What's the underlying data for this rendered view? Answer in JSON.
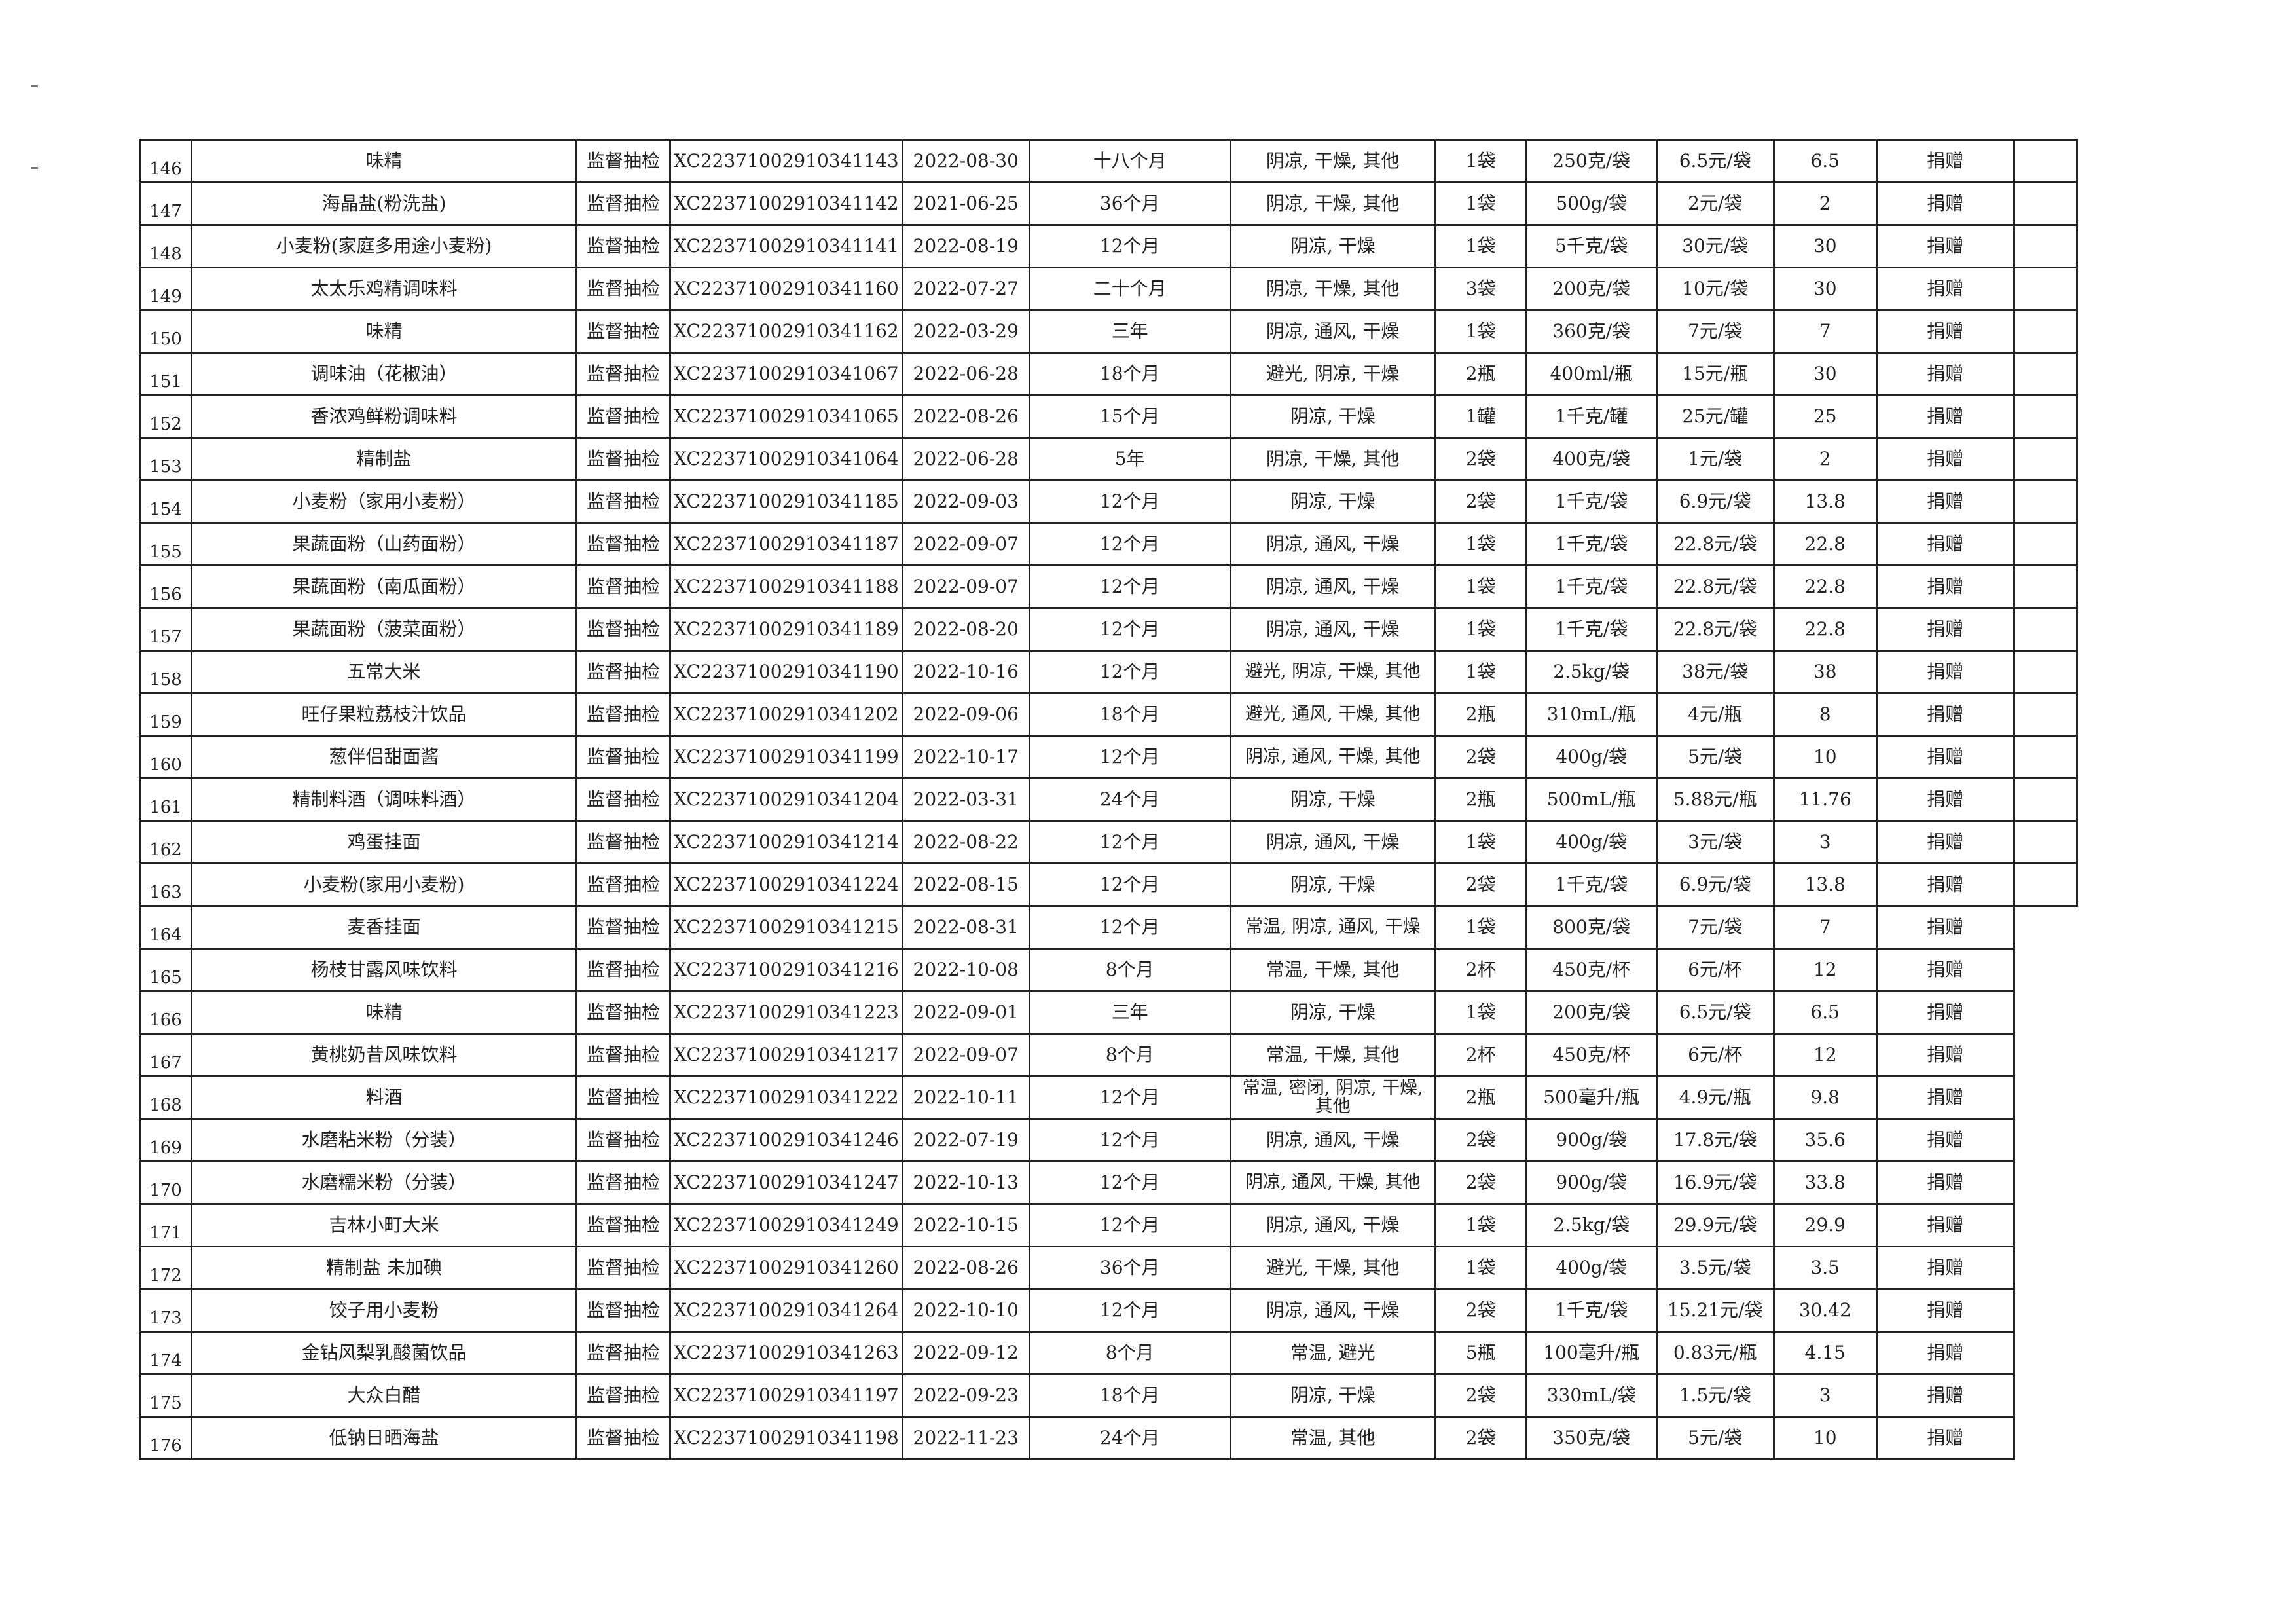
{
  "rows": [
    {
      "no": "146",
      "name": "味精",
      "type": "监督抽检",
      "code": "XC22371002910341143",
      "date": "2022-08-30",
      "shelf": "十八个月",
      "storage": "阴凉, 干燥, 其他",
      "qty": "1袋",
      "spec": "250克/袋",
      "price": "6.5元/袋",
      "amount": "6.5",
      "method": "捐赠"
    },
    {
      "no": "147",
      "name": "海晶盐(粉洗盐)",
      "type": "监督抽检",
      "code": "XC22371002910341142",
      "date": "2021-06-25",
      "shelf": "36个月",
      "storage": "阴凉, 干燥, 其他",
      "qty": "1袋",
      "spec": "500g/袋",
      "price": "2元/袋",
      "amount": "2",
      "method": "捐赠"
    },
    {
      "no": "148",
      "name": "小麦粉(家庭多用途小麦粉)",
      "type": "监督抽检",
      "code": "XC22371002910341141",
      "date": "2022-08-19",
      "shelf": "12个月",
      "storage": "阴凉, 干燥",
      "qty": "1袋",
      "spec": "5千克/袋",
      "price": "30元/袋",
      "amount": "30",
      "method": "捐赠"
    },
    {
      "no": "149",
      "name": "太太乐鸡精调味料",
      "type": "监督抽检",
      "code": "XC22371002910341160",
      "date": "2022-07-27",
      "shelf": "二十个月",
      "storage": "阴凉, 干燥, 其他",
      "qty": "3袋",
      "spec": "200克/袋",
      "price": "10元/袋",
      "amount": "30",
      "method": "捐赠"
    },
    {
      "no": "150",
      "name": "味精",
      "type": "监督抽检",
      "code": "XC22371002910341162",
      "date": "2022-03-29",
      "shelf": "三年",
      "storage": "阴凉, 通风, 干燥",
      "qty": "1袋",
      "spec": "360克/袋",
      "price": "7元/袋",
      "amount": "7",
      "method": "捐赠"
    },
    {
      "no": "151",
      "name": "调味油（花椒油）",
      "type": "监督抽检",
      "code": "XC22371002910341067",
      "date": "2022-06-28",
      "shelf": "18个月",
      "storage": "避光, 阴凉, 干燥",
      "qty": "2瓶",
      "spec": "400ml/瓶",
      "price": "15元/瓶",
      "amount": "30",
      "method": "捐赠"
    },
    {
      "no": "152",
      "name": "香浓鸡鲜粉调味料",
      "type": "监督抽检",
      "code": "XC22371002910341065",
      "date": "2022-08-26",
      "shelf": "15个月",
      "storage": "阴凉, 干燥",
      "qty": "1罐",
      "spec": "1千克/罐",
      "price": "25元/罐",
      "amount": "25",
      "method": "捐赠"
    },
    {
      "no": "153",
      "name": "精制盐",
      "type": "监督抽检",
      "code": "XC22371002910341064",
      "date": "2022-06-28",
      "shelf": "5年",
      "storage": "阴凉, 干燥, 其他",
      "qty": "2袋",
      "spec": "400克/袋",
      "price": "1元/袋",
      "amount": "2",
      "method": "捐赠"
    },
    {
      "no": "154",
      "name": "小麦粉（家用小麦粉）",
      "type": "监督抽检",
      "code": "XC22371002910341185",
      "date": "2022-09-03",
      "shelf": "12个月",
      "storage": "阴凉, 干燥",
      "qty": "2袋",
      "spec": "1千克/袋",
      "price": "6.9元/袋",
      "amount": "13.8",
      "method": "捐赠"
    },
    {
      "no": "155",
      "name": "果蔬面粉（山药面粉）",
      "type": "监督抽检",
      "code": "XC22371002910341187",
      "date": "2022-09-07",
      "shelf": "12个月",
      "storage": "阴凉, 通风, 干燥",
      "qty": "1袋",
      "spec": "1千克/袋",
      "price": "22.8元/袋",
      "amount": "22.8",
      "method": "捐赠"
    },
    {
      "no": "156",
      "name": "果蔬面粉（南瓜面粉）",
      "type": "监督抽检",
      "code": "XC22371002910341188",
      "date": "2022-09-07",
      "shelf": "12个月",
      "storage": "阴凉, 通风, 干燥",
      "qty": "1袋",
      "spec": "1千克/袋",
      "price": "22.8元/袋",
      "amount": "22.8",
      "method": "捐赠"
    },
    {
      "no": "157",
      "name": "果蔬面粉（菠菜面粉）",
      "type": "监督抽检",
      "code": "XC22371002910341189",
      "date": "2022-08-20",
      "shelf": "12个月",
      "storage": "阴凉, 通风, 干燥",
      "qty": "1袋",
      "spec": "1千克/袋",
      "price": "22.8元/袋",
      "amount": "22.8",
      "method": "捐赠"
    },
    {
      "no": "158",
      "name": "五常大米",
      "type": "监督抽检",
      "code": "XC22371002910341190",
      "date": "2022-10-16",
      "shelf": "12个月",
      "storage": "避光, 阴凉, 干燥, 其他",
      "qty": "1袋",
      "spec": "2.5kg/袋",
      "price": "38元/袋",
      "amount": "38",
      "method": "捐赠"
    },
    {
      "no": "159",
      "name": "旺仔果粒荔枝汁饮品",
      "type": "监督抽检",
      "code": "XC22371002910341202",
      "date": "2022-09-06",
      "shelf": "18个月",
      "storage": "避光, 通风, 干燥, 其他",
      "qty": "2瓶",
      "spec": "310mL/瓶",
      "price": "4元/瓶",
      "amount": "8",
      "method": "捐赠"
    },
    {
      "no": "160",
      "name": "葱伴侣甜面酱",
      "type": "监督抽检",
      "code": "XC22371002910341199",
      "date": "2022-10-17",
      "shelf": "12个月",
      "storage": "阴凉, 通风, 干燥, 其他",
      "qty": "2袋",
      "spec": "400g/袋",
      "price": "5元/袋",
      "amount": "10",
      "method": "捐赠"
    },
    {
      "no": "161",
      "name": "精制料酒（调味料酒）",
      "type": "监督抽检",
      "code": "XC22371002910341204",
      "date": "2022-03-31",
      "shelf": "24个月",
      "storage": "阴凉, 干燥",
      "qty": "2瓶",
      "spec": "500mL/瓶",
      "price": "5.88元/瓶",
      "amount": "11.76",
      "method": "捐赠"
    },
    {
      "no": "162",
      "name": "鸡蛋挂面",
      "type": "监督抽检",
      "code": "XC22371002910341214",
      "date": "2022-08-22",
      "shelf": "12个月",
      "storage": "阴凉, 通风, 干燥",
      "qty": "1袋",
      "spec": "400g/袋",
      "price": "3元/袋",
      "amount": "3",
      "method": "捐赠"
    },
    {
      "no": "163",
      "name": "小麦粉(家用小麦粉)",
      "type": "监督抽检",
      "code": "XC22371002910341224",
      "date": "2022-08-15",
      "shelf": "12个月",
      "storage": "阴凉, 干燥",
      "qty": "2袋",
      "spec": "1千克/袋",
      "price": "6.9元/袋",
      "amount": "13.8",
      "method": "捐赠"
    },
    {
      "no": "164",
      "name": "麦香挂面",
      "type": "监督抽检",
      "code": "XC22371002910341215",
      "date": "2022-08-31",
      "shelf": "12个月",
      "storage": "常温, 阴凉, 通风, 干燥",
      "qty": "1袋",
      "spec": "800克/袋",
      "price": "7元/袋",
      "amount": "7",
      "method": "捐赠"
    },
    {
      "no": "165",
      "name": "杨枝甘露风味饮料",
      "type": "监督抽检",
      "code": "XC22371002910341216",
      "date": "2022-10-08",
      "shelf": "8个月",
      "storage": "常温, 干燥, 其他",
      "qty": "2杯",
      "spec": "450克/杯",
      "price": "6元/杯",
      "amount": "12",
      "method": "捐赠"
    },
    {
      "no": "166",
      "name": "味精",
      "type": "监督抽检",
      "code": "XC22371002910341223",
      "date": "2022-09-01",
      "shelf": "三年",
      "storage": "阴凉, 干燥",
      "qty": "1袋",
      "spec": "200克/袋",
      "price": "6.5元/袋",
      "amount": "6.5",
      "method": "捐赠"
    },
    {
      "no": "167",
      "name": "黄桃奶昔风味饮料",
      "type": "监督抽检",
      "code": "XC22371002910341217",
      "date": "2022-09-07",
      "shelf": "8个月",
      "storage": "常温, 干燥, 其他",
      "qty": "2杯",
      "spec": "450克/杯",
      "price": "6元/杯",
      "amount": "12",
      "method": "捐赠"
    },
    {
      "no": "168",
      "name": "料酒",
      "type": "监督抽检",
      "code": "XC22371002910341222",
      "date": "2022-10-11",
      "shelf": "12个月",
      "storage": "常温, 密闭, 阴凉, 干燥, 其他",
      "qty": "2瓶",
      "spec": "500毫升/瓶",
      "price": "4.9元/瓶",
      "amount": "9.8",
      "method": "捐赠"
    },
    {
      "no": "169",
      "name": "水磨粘米粉（分装）",
      "type": "监督抽检",
      "code": "XC22371002910341246",
      "date": "2022-07-19",
      "shelf": "12个月",
      "storage": "阴凉, 通风, 干燥",
      "qty": "2袋",
      "spec": "900g/袋",
      "price": "17.8元/袋",
      "amount": "35.6",
      "method": "捐赠"
    },
    {
      "no": "170",
      "name": "水磨糯米粉（分装）",
      "type": "监督抽检",
      "code": "XC22371002910341247",
      "date": "2022-10-13",
      "shelf": "12个月",
      "storage": "阴凉, 通风, 干燥, 其他",
      "qty": "2袋",
      "spec": "900g/袋",
      "price": "16.9元/袋",
      "amount": "33.8",
      "method": "捐赠"
    },
    {
      "no": "171",
      "name": "吉林小町大米",
      "type": "监督抽检",
      "code": "XC22371002910341249",
      "date": "2022-10-15",
      "shelf": "12个月",
      "storage": "阴凉, 通风, 干燥",
      "qty": "1袋",
      "spec": "2.5kg/袋",
      "price": "29.9元/袋",
      "amount": "29.9",
      "method": "捐赠"
    },
    {
      "no": "172",
      "name": "精制盐 未加碘",
      "type": "监督抽检",
      "code": "XC22371002910341260",
      "date": "2022-08-26",
      "shelf": "36个月",
      "storage": "避光, 干燥, 其他",
      "qty": "1袋",
      "spec": "400g/袋",
      "price": "3.5元/袋",
      "amount": "3.5",
      "method": "捐赠"
    },
    {
      "no": "173",
      "name": "饺子用小麦粉",
      "type": "监督抽检",
      "code": "XC22371002910341264",
      "date": "2022-10-10",
      "shelf": "12个月",
      "storage": "阴凉, 通风, 干燥",
      "qty": "2袋",
      "spec": "1千克/袋",
      "price": "15.21元/袋",
      "amount": "30.42",
      "method": "捐赠"
    },
    {
      "no": "174",
      "name": "金钻风梨乳酸菌饮品",
      "type": "监督抽检",
      "code": "XC22371002910341263",
      "date": "2022-09-12",
      "shelf": "8个月",
      "storage": "常温, 避光",
      "qty": "5瓶",
      "spec": "100毫升/瓶",
      "price": "0.83元/瓶",
      "amount": "4.15",
      "method": "捐赠"
    },
    {
      "no": "175",
      "name": "大众白醋",
      "type": "监督抽检",
      "code": "XC22371002910341197",
      "date": "2022-09-23",
      "shelf": "18个月",
      "storage": "阴凉, 干燥",
      "qty": "2袋",
      "spec": "330mL/袋",
      "price": "1.5元/袋",
      "amount": "3",
      "method": "捐赠"
    },
    {
      "no": "176",
      "name": "低钠日晒海盐",
      "type": "监督抽检",
      "code": "XC22371002910341198",
      "date": "2022-11-23",
      "shelf": "24个月",
      "storage": "常温, 其他",
      "qty": "2袋",
      "spec": "350克/袋",
      "price": "5元/袋",
      "amount": "10",
      "method": "捐赠"
    }
  ]
}
